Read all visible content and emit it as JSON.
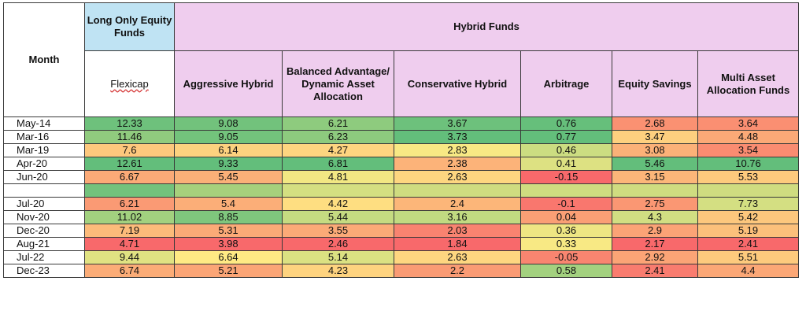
{
  "header": {
    "month": "Month",
    "equity_group": "Long Only Equity Funds",
    "hybrid_group": "Hybrid Funds"
  },
  "columns": [
    "Flexicap",
    "Aggressive Hybrid",
    "Balanced Advantage/ Dynamic Asset Allocation",
    "Conservative Hybrid",
    "Arbitrage",
    "Equity Savings",
    "Multi Asset Allocation Funds"
  ],
  "chart_data": {
    "type": "table",
    "subtype": "heatmap",
    "columns": [
      "Flexicap",
      "Aggressive Hybrid",
      "Balanced Advantage/ Dynamic Asset Allocation",
      "Conservative Hybrid",
      "Arbitrage",
      "Equity Savings",
      "Multi Asset Allocation Funds"
    ],
    "rows": [
      {
        "month": "May-14",
        "values": [
          "12.33",
          "9.08",
          "6.21",
          "3.67",
          "0.76",
          "2.68",
          "3.64"
        ]
      },
      {
        "month": "Mar-16",
        "values": [
          "11.46",
          "9.05",
          "6.23",
          "3.73",
          "0.77",
          "3.47",
          "4.48"
        ]
      },
      {
        "month": "Mar-19",
        "values": [
          "7.6",
          "6.14",
          "4.27",
          "2.83",
          "0.46",
          "3.08",
          "3.54"
        ]
      },
      {
        "month": "Apr-20",
        "values": [
          "12.61",
          "9.33",
          "6.81",
          "2.38",
          "0.41",
          "5.46",
          "10.76"
        ]
      },
      {
        "month": "Jun-20",
        "values": [
          "6.67",
          "5.45",
          "4.81",
          "2.63",
          "-0.15",
          "3.15",
          "5.53"
        ]
      },
      {
        "month": "",
        "values": [
          "",
          "",
          "",
          "",
          "",
          "",
          ""
        ]
      },
      {
        "month": "Jul-20",
        "values": [
          "6.21",
          "5.4",
          "4.42",
          "2.4",
          "-0.1",
          "2.75",
          "7.73"
        ]
      },
      {
        "month": "Nov-20",
        "values": [
          "11.02",
          "8.85",
          "5.44",
          "3.16",
          "0.04",
          "4.3",
          "5.42"
        ]
      },
      {
        "month": "Dec-20",
        "values": [
          "7.19",
          "5.31",
          "3.55",
          "2.03",
          "0.36",
          "2.9",
          "5.19"
        ]
      },
      {
        "month": "Aug-21",
        "values": [
          "4.71",
          "3.98",
          "2.46",
          "1.84",
          "0.33",
          "2.17",
          "2.41"
        ]
      },
      {
        "month": "Jul-22",
        "values": [
          "9.44",
          "6.64",
          "5.14",
          "2.63",
          "-0.05",
          "2.92",
          "5.51"
        ]
      },
      {
        "month": "Dec-23",
        "values": [
          "6.74",
          "5.21",
          "4.23",
          "2.2",
          "0.58",
          "2.41",
          "4.4"
        ]
      }
    ],
    "gap_colors": [
      "#73c27c",
      "#a6d07c",
      "#d4df81",
      "#cfdc80",
      "#cfdc80",
      "#cfdc80",
      "#cfdc80"
    ],
    "color_scale": [
      "#f8696b",
      "#fbaa77",
      "#ffeb84",
      "#b1d580",
      "#63be7b"
    ],
    "legend": "none"
  }
}
